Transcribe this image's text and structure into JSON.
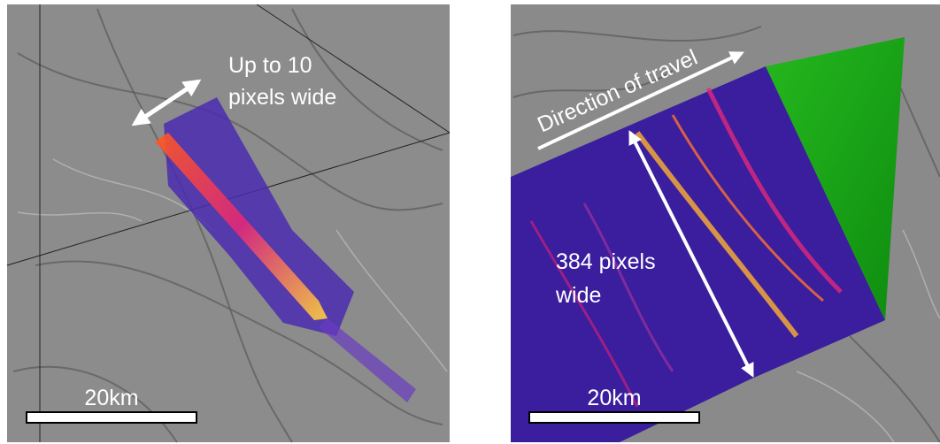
{
  "panels": [
    {
      "annotation": [
        "Up to 10",
        "pixels wide"
      ],
      "scale_bar": "20km"
    },
    {
      "direction": "Direction of travel",
      "annotation": [
        "384 pixels",
        "wide"
      ],
      "scale_bar": "20km"
    }
  ]
}
